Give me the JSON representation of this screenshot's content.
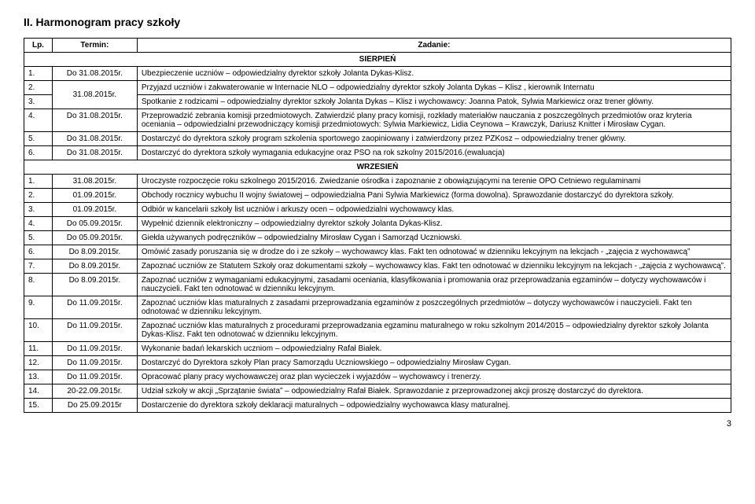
{
  "title": "II.  Harmonogram pracy szkoły",
  "headers": {
    "lp": "Lp.",
    "termin": "Termin:",
    "zadanie": "Zadanie:"
  },
  "sections": {
    "sierpien": "SIERPIEŃ",
    "wrzesien": "WRZESIEŃ"
  },
  "sierpien": [
    {
      "lp": "1.",
      "term": "Do 31.08.2015r.",
      "task": "Ubezpieczenie uczniów – odpowiedzialny dyrektor szkoły Jolanta Dykas-Klisz."
    },
    {
      "lp": "2.",
      "term_rowspan": "31.08.2015r.",
      "task": "Przyjazd uczniów i zakwaterowanie w Internacie NLO – odpowiedzialny dyrektor szkoły Jolanta Dykas – Klisz , kierownik Internatu"
    },
    {
      "lp": "3.",
      "task": "Spotkanie z rodzicami – odpowiedzialny dyrektor szkoły Jolanta Dykas – Klisz i wychowawcy: Joanna Patok, Sylwia Markiewicz oraz trener główny."
    },
    {
      "lp": "4.",
      "term": "Do 31.08.2015r.",
      "task": "Przeprowadzić zebrania komisji przedmiotowych. Zatwierdzić plany pracy komisji, rozkłady materiałów nauczania z poszczególnych przedmiotów oraz kryteria oceniania – odpowiedzialni przewodniczący komisji przedmiotowych: Sylwia Markiewicz, Lidia Ceynowa – Krawczyk, Dariusz Knitter i Mirosław Cygan."
    },
    {
      "lp": "5.",
      "term": "Do 31.08.2015r.",
      "task": "Dostarczyć do dyrektora szkoły program szkolenia sportowego zaopiniowany i zatwierdzony przez PZKosz – odpowiedzialny trener główny."
    },
    {
      "lp": "6.",
      "term": "Do 31.08.2015r.",
      "task": "Dostarczyć do dyrektora szkoły wymagania edukacyjne oraz PSO na rok szkolny 2015/2016.(ewaluacja)"
    }
  ],
  "wrzesien": [
    {
      "lp": "1.",
      "term": "31.08.2015r.",
      "task": "Uroczyste rozpoczęcie roku szkolnego 2015/2016. Zwiedzanie ośrodka i zapoznanie z obowiązującymi na terenie OPO Cetniewo regulaminami"
    },
    {
      "lp": "2.",
      "term": "01.09.2015r.",
      "task": "Obchody rocznicy wybuchu II wojny światowej – odpowiedzialna Pani Sylwia Markiewicz (forma dowolna). Sprawozdanie dostarczyć do dyrektora szkoły."
    },
    {
      "lp": "3.",
      "term": "01.09.2015r.",
      "task": "Odbiór w kancelarii szkoły list uczniów i arkuszy ocen – odpowiedzialni wychowawcy klas."
    },
    {
      "lp": "4.",
      "term": "Do 05.09.2015r.",
      "task": "Wypełnić dziennik elektroniczny – odpowiedzialny dyrektor szkoły Jolanta Dykas-Klisz."
    },
    {
      "lp": "5.",
      "term": "Do 05.09.2015r.",
      "task": "Giełda używanych podręczników – odpowiedzialny Mirosław Cygan i  Samorząd Uczniowski."
    },
    {
      "lp": "6.",
      "term": "Do 8.09.2015r.",
      "task": "Omówić zasady poruszania się w drodze do i ze szkoły – wychowawcy klas. Fakt ten odnotować w dzienniku lekcyjnym na lekcjach - „zajęcia z wychowawcą”"
    },
    {
      "lp": "7.",
      "term": "Do 8.09.2015r.",
      "task": "Zapoznać uczniów ze Statutem Szkoły oraz dokumentami szkoły – wychowawcy klas. Fakt ten odnotować w dzienniku lekcyjnym na lekcjach - „zajęcia z wychowawcą”."
    },
    {
      "lp": "8.",
      "term": "Do 8.09.2015r.",
      "task": "Zapoznać uczniów z wymaganiami edukacyjnymi, zasadami oceniania, klasyfikowania i promowania oraz przeprowadzania egzaminów – dotyczy wychowawców i nauczycieli. Fakt ten odnotować w dzienniku lekcyjnym."
    },
    {
      "lp": "9.",
      "term": "Do 11.09.2015r.",
      "task": "Zapoznać uczniów klas maturalnych z zasadami przeprowadzania egzaminów z poszczególnych przedmiotów – dotyczy wychowawców i nauczycieli. Fakt ten odnotować w dzienniku lekcyjnym."
    },
    {
      "lp": "10.",
      "term": "Do 11.09.2015r.",
      "task": "Zapoznać uczniów klas maturalnych z procedurami przeprowadzania egzaminu maturalnego w roku szkolnym 2014/2015 – odpowiedzialny dyrektor szkoły Jolanta Dykas-Klisz. Fakt ten odnotować w dzienniku lekcyjnym."
    },
    {
      "lp": "11.",
      "term": "Do 11.09.2015r.",
      "task": "Wykonanie badań lekarskich uczniom – odpowiedzialny Rafał Białek."
    },
    {
      "lp": "12.",
      "term": "Do 11.09.2015r.",
      "task": "Dostarczyć do Dyrektora szkoły Plan pracy Samorządu Uczniowskiego – odpowiedzialny Mirosław Cygan."
    },
    {
      "lp": "13.",
      "term": "Do 11.09.2015r.",
      "task": "Opracować plany pracy wychowawczej oraz plan wycieczek i wyjazdów – wychowawcy i trenerzy."
    },
    {
      "lp": "14.",
      "term": "20-22.09.2015r.",
      "task": "Udział szkoły w akcji „Sprzątanie świata” – odpowiedzialny Rafał Białek. Sprawozdanie z przeprowadzonej akcji proszę dostarczyć do dyrektora."
    },
    {
      "lp": "15.",
      "term": "Do 25.09.2015r",
      "task": "Dostarczenie do dyrektora szkoły deklaracji maturalnych – odpowiedzialny wychowawca klasy maturalnej."
    }
  ],
  "page": "3"
}
